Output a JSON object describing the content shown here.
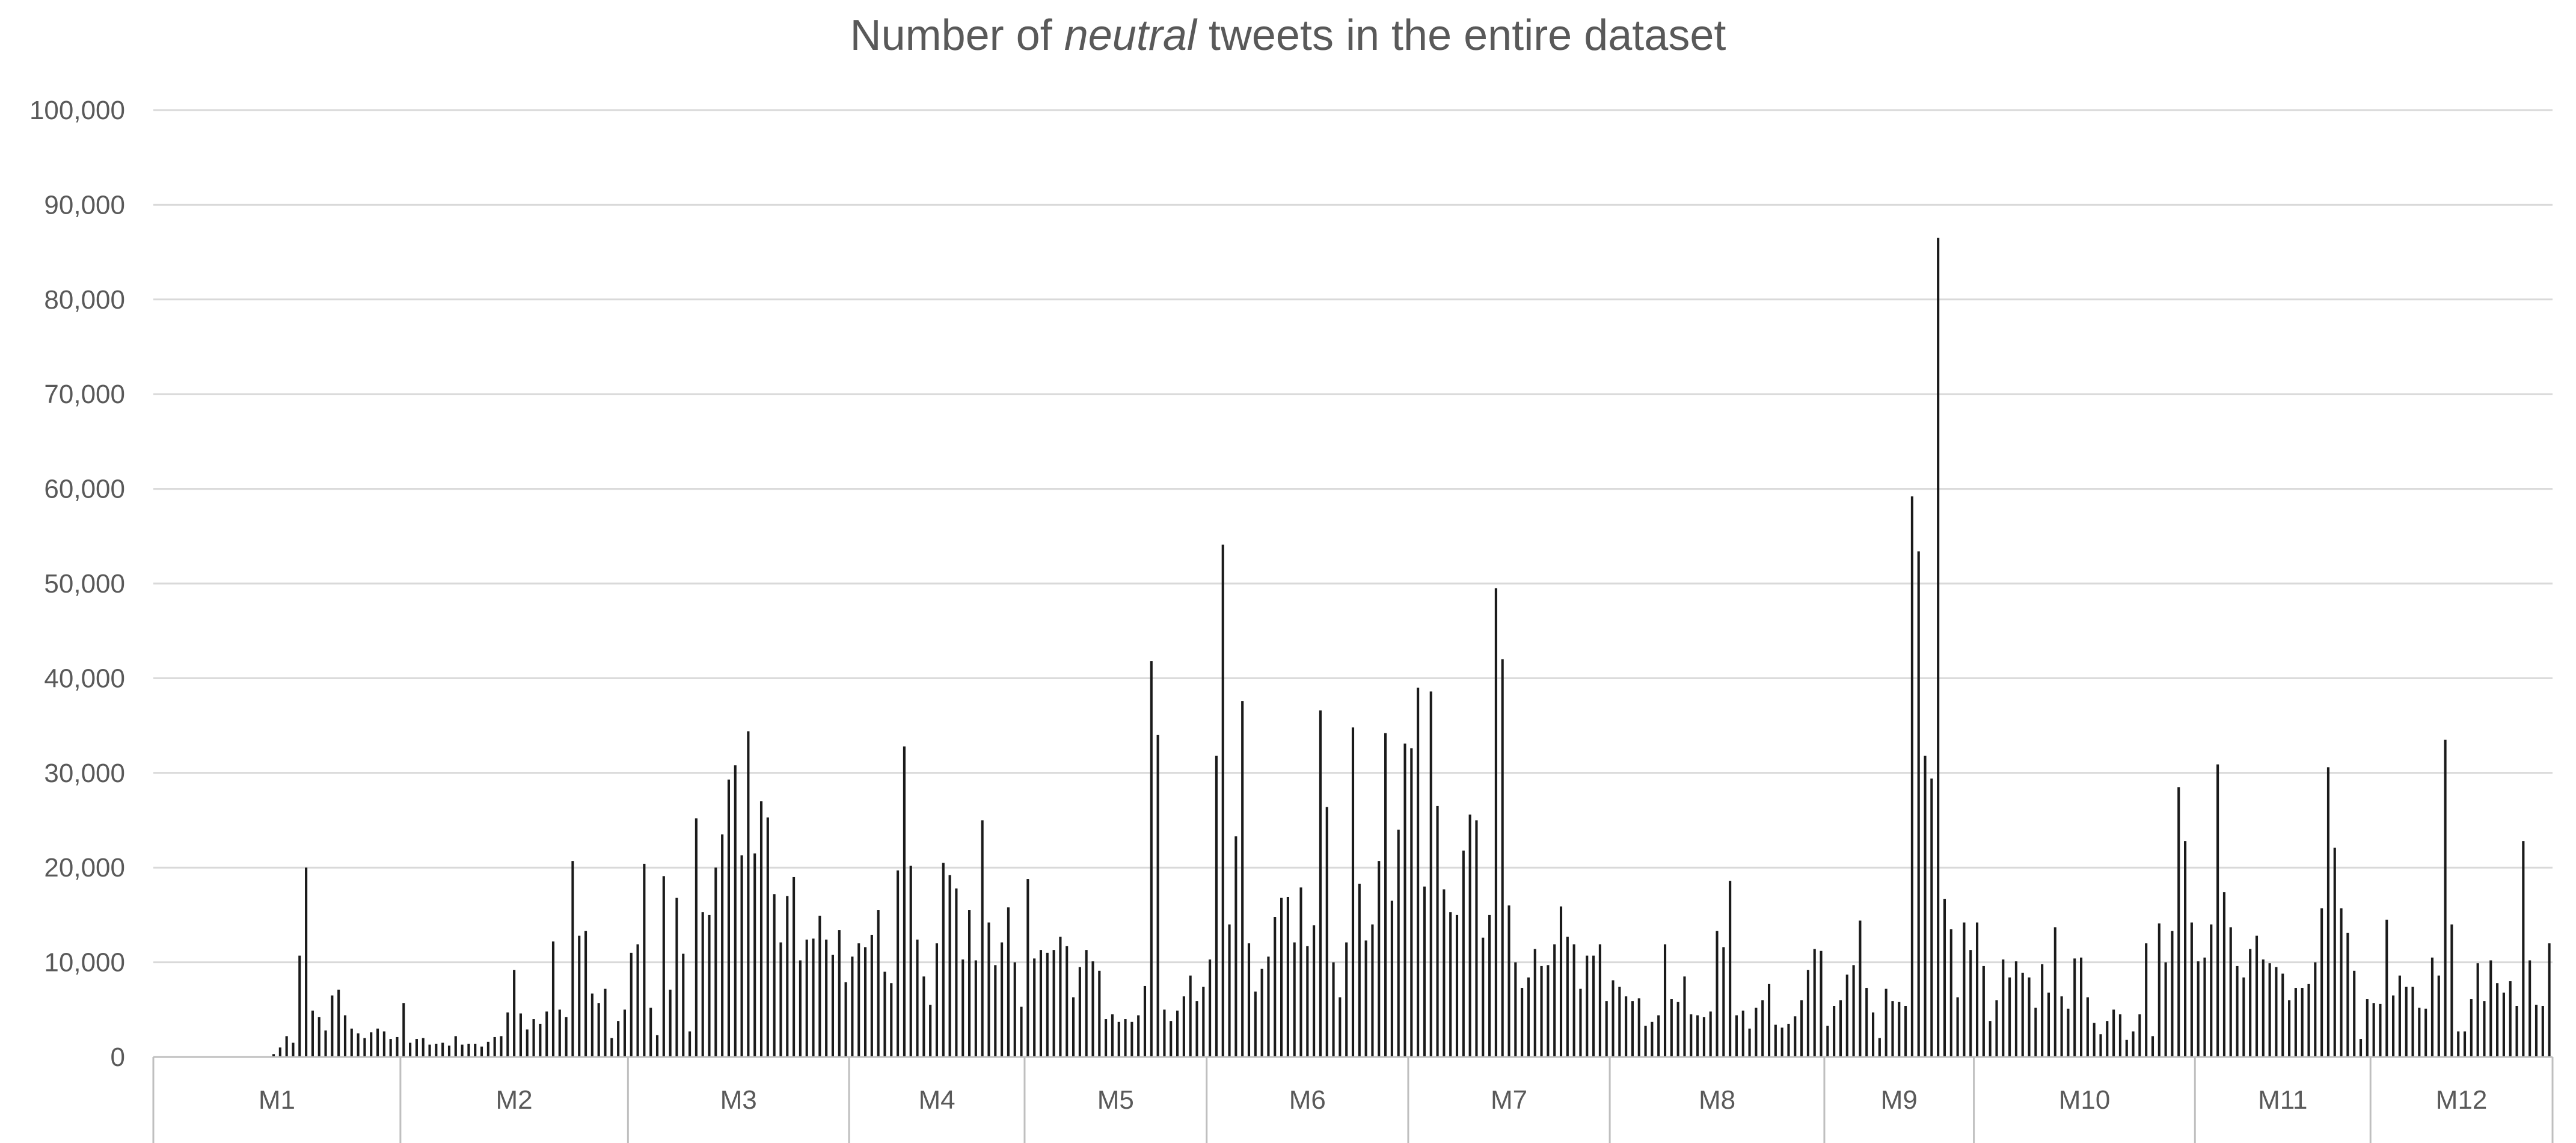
{
  "chart_data": {
    "type": "bar",
    "title": {
      "prefix": "Number of ",
      "emphasis": "neutral",
      "suffix": " tweets in the entire dataset"
    },
    "xlabel": "",
    "ylabel": "",
    "ylim": [
      0,
      100000
    ],
    "yticks": [
      "0",
      "10,000",
      "20,000",
      "30,000",
      "40,000",
      "50,000",
      "60,000",
      "70,000",
      "80,000",
      "90,000",
      "100,000"
    ],
    "grid": true,
    "legend": "none",
    "bar_color": "#1a1a1a",
    "grid_color": "#d9d9d9",
    "axis_color": "#bfbfbf",
    "text_color": "#595959",
    "categories": [
      "M1",
      "M2",
      "M3",
      "M4",
      "M5",
      "M6",
      "M7",
      "M8",
      "M9",
      "M10",
      "M11",
      "M12"
    ],
    "series": [
      {
        "months": [
          [
            0,
            0,
            0,
            0,
            0,
            0,
            0,
            0,
            0,
            0,
            0,
            0,
            0,
            0,
            0,
            0,
            0,
            0,
            300,
            1000,
            2200,
            1500,
            10700,
            20000,
            4900,
            4200,
            2800,
            6500,
            7100,
            4400,
            3000,
            2500,
            2000,
            2600,
            3000,
            2700,
            1900,
            2100
          ],
          [
            5700,
            1500,
            1900,
            2000,
            1300,
            1400,
            1500,
            1200,
            2200,
            1300,
            1400,
            1400,
            1100,
            1600,
            2100,
            2200,
            4700,
            9200,
            4600,
            2900,
            4000,
            3500,
            4800,
            12200,
            5000,
            4200,
            20700,
            12800,
            13300,
            6700,
            5700,
            7200,
            2000,
            3800,
            5000
          ],
          [
            11000,
            11900,
            20400,
            5200,
            2300,
            19100,
            7100,
            16800,
            10900,
            2700,
            25200,
            15300,
            15000,
            20000,
            23500,
            29300,
            30800,
            21300,
            34400,
            21500,
            27000,
            25300,
            17200,
            12100,
            17000,
            19000,
            10200,
            12400,
            12500,
            14900,
            12400,
            10800,
            13400,
            7900
          ],
          [
            10600,
            12000,
            11600,
            12900,
            15500,
            9000,
            7800,
            19700,
            32800,
            20200,
            12400,
            8500,
            5500,
            12000,
            20500,
            19200,
            17800,
            10300,
            15500,
            10200,
            25000,
            14200,
            9700,
            12100,
            15800,
            10000,
            5300
          ],
          [
            18800,
            10400,
            11300,
            11000,
            11300,
            12700,
            11700,
            6300,
            9500,
            11300,
            10100,
            9100,
            4000,
            4500,
            3700,
            4000,
            3700,
            4400,
            7500,
            41800,
            34000,
            5000,
            3800,
            4900,
            6400,
            8600,
            5900,
            7400
          ],
          [
            10300,
            31800,
            54100,
            14000,
            23300,
            37600,
            12000,
            6900,
            9300,
            10600,
            14800,
            16800,
            16900,
            12100,
            17900,
            11700,
            13900,
            36600,
            26400,
            10000,
            6300,
            12100,
            34800,
            18300,
            12300,
            14000,
            20700,
            34200,
            16500,
            24000,
            33100
          ],
          [
            32600,
            39000,
            18000,
            38600,
            26500,
            17700,
            15300,
            15000,
            21800,
            25600,
            25000,
            12600,
            15000,
            49500,
            42000,
            16000,
            10000,
            7300,
            8400,
            11400,
            9600,
            9700,
            11900,
            15900,
            12700,
            11900,
            7200,
            10700,
            10700,
            11900,
            5900
          ],
          [
            8100,
            7400,
            6400,
            5900,
            6200,
            3300,
            3700,
            4400,
            11900,
            6100,
            5800,
            8500,
            4500,
            4400,
            4200,
            4800,
            13300,
            11600,
            18600,
            4400,
            4900,
            3000,
            5200,
            6000,
            7700,
            3400,
            3100,
            3500,
            4300,
            6000,
            9200,
            11400,
            11200
          ],
          [
            3300,
            5400,
            6000,
            8700,
            9700,
            14400,
            7300,
            4700,
            2000,
            7200,
            5900,
            5800,
            5400,
            59200,
            53400,
            31800,
            29400,
            86500,
            16700,
            13500,
            6300,
            14200,
            11300
          ],
          [
            14200,
            9600,
            3800,
            6000,
            10300,
            8400,
            10100,
            8900,
            8400,
            5200,
            9800,
            6800,
            13700,
            6400,
            5100,
            10400,
            10500,
            6300,
            3600,
            2400,
            3800,
            5000,
            4500,
            1800,
            2700,
            4500,
            12000,
            2200,
            14100,
            10000,
            13300,
            28500,
            22800,
            14200
          ],
          [
            10100,
            10500,
            14000,
            30900,
            17400,
            13700,
            9600,
            8400,
            11400,
            12800,
            10300,
            9900,
            9500,
            8800,
            6000,
            7300,
            7300,
            7700,
            10000,
            15700,
            30600,
            22100,
            15700,
            13100,
            9100,
            1900,
            6100
          ],
          [
            5700,
            5600,
            14500,
            6500,
            8600,
            7400,
            7400,
            5200,
            5100,
            10500,
            8600,
            33500,
            14000,
            2700,
            2700,
            6100,
            9900,
            5900,
            10200,
            7800,
            6800,
            8000,
            5400,
            22800,
            10200,
            5500,
            5400,
            12000
          ]
        ]
      }
    ]
  }
}
